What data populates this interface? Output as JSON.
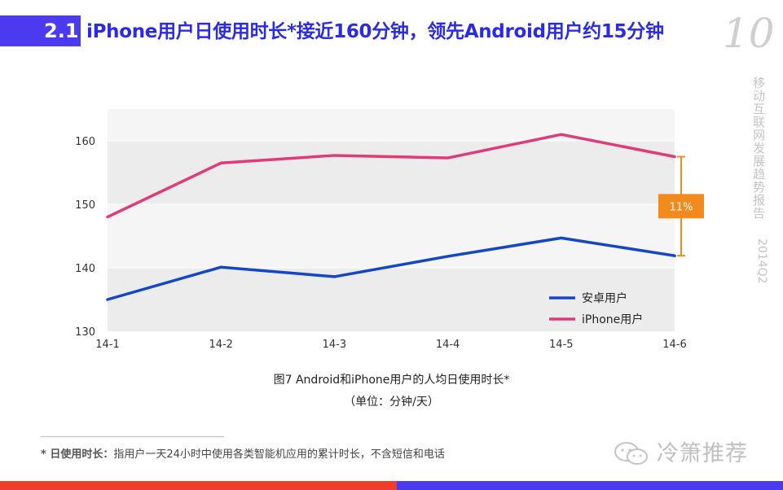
{
  "header": {
    "section_number": "2.1",
    "title": "iPhone用户日使用时长*接近160分钟，领先Android用户约15分钟"
  },
  "page_number": "10",
  "side_text": {
    "report_name": "移动互联网发展趋势报告",
    "period": "2014Q2"
  },
  "chart_data": {
    "type": "line",
    "categories": [
      "14-1",
      "14-2",
      "14-3",
      "14-4",
      "14-5",
      "14-6"
    ],
    "series": [
      {
        "name": "安卓用户",
        "color": "#1446c8",
        "values": [
          135,
          140.1,
          138.6,
          141.8,
          144.7,
          141.9
        ]
      },
      {
        "name": "iPhone用户",
        "color": "#e03a78",
        "values": [
          148,
          156.5,
          157.7,
          157.3,
          161,
          157.5
        ]
      }
    ],
    "ylim": [
      130,
      165
    ],
    "yticks": [
      130,
      140,
      150,
      160
    ],
    "grid": true,
    "legend_position": "bottom-right",
    "annotation": {
      "label": "11%",
      "color": "#f28a1e"
    }
  },
  "caption": "图7 Android和iPhone用户的人均日使用时长*",
  "unit": "（单位：分钟/天）",
  "footnote": {
    "label": "* 日使用时长：",
    "text": "指用户一天24小时中使用各类智能机应用的累计时长，不含短信和电话"
  },
  "watermark": "冷箫推荐"
}
